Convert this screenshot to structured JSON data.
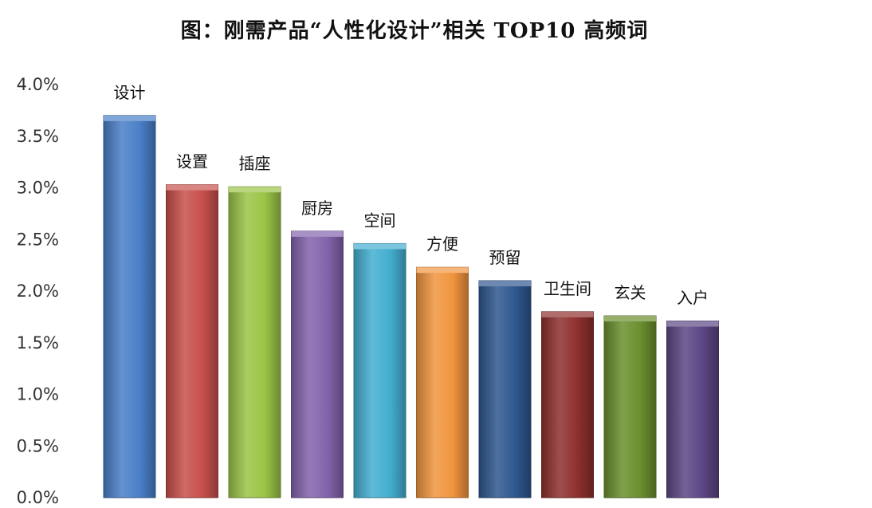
{
  "chart_data": {
    "type": "bar",
    "title": "图：刚需产品“人性化设计”相关 TOP10 高频词",
    "categories": [
      "设计",
      "设置",
      "插座",
      "厨房",
      "空间",
      "方便",
      "预留",
      "卫生间",
      "玄关",
      "入户"
    ],
    "values": [
      3.7,
      3.03,
      3.01,
      2.58,
      2.46,
      2.23,
      2.1,
      1.8,
      1.76,
      1.71
    ],
    "y_ticks": [
      "0.0%",
      "0.5%",
      "1.0%",
      "1.5%",
      "2.0%",
      "2.5%",
      "3.0%",
      "3.5%",
      "4.0%"
    ],
    "ylim": [
      0,
      4.0
    ],
    "y_unit": "%",
    "grid": false,
    "legend": "none",
    "colors": [
      "#4a7fc8",
      "#c8504b",
      "#9bc446",
      "#8263ac",
      "#43aed0",
      "#f0953f",
      "#2f578f",
      "#8e2f2d",
      "#6b8f2e",
      "#5c4684"
    ]
  }
}
